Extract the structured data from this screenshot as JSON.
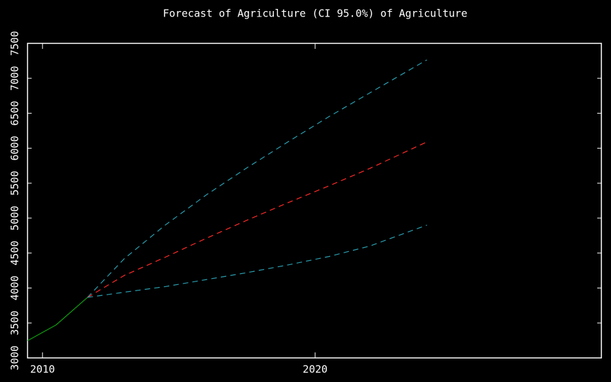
{
  "chart_data": {
    "type": "line",
    "title": "Forecast of Agriculture (CI 95.0%) of Agriculture",
    "xlim": [
      2009.45,
      2030.5
    ],
    "xticks": [
      2010,
      2020
    ],
    "ylim": [
      3000,
      7500
    ],
    "yticks": [
      3000,
      3500,
      4000,
      4500,
      5000,
      5500,
      6000,
      6500,
      7000,
      7500
    ],
    "series": [
      {
        "color": "#10a010",
        "dashed": false,
        "x": [
          2009.45,
          2010.5,
          2011.65
        ],
        "values": [
          3246,
          3473,
          3866
        ]
      },
      {
        "color": "#2a9fb0",
        "dashed": true,
        "x": [
          2011.65,
          2013,
          2014.5,
          2016,
          2017.5,
          2019,
          2020.5,
          2022,
          2024.1
        ],
        "values": [
          3866,
          4420,
          4900,
          5330,
          5720,
          6090,
          6450,
          6790,
          7264
        ]
      },
      {
        "color": "#ff2a2a",
        "dashed": true,
        "x": [
          2011.65,
          2013,
          2014.5,
          2016,
          2017.5,
          2019,
          2020.5,
          2022,
          2024.1
        ],
        "values": [
          3866,
          4180,
          4440,
          4710,
          4970,
          5220,
          5460,
          5710,
          6090
        ]
      },
      {
        "color": "#2a9fb0",
        "dashed": true,
        "x": [
          2011.65,
          2013,
          2014.5,
          2016,
          2017.5,
          2019,
          2020.5,
          2022,
          2024.1
        ],
        "values": [
          3866,
          3940,
          4020,
          4120,
          4220,
          4330,
          4450,
          4600,
          4900
        ]
      }
    ]
  }
}
